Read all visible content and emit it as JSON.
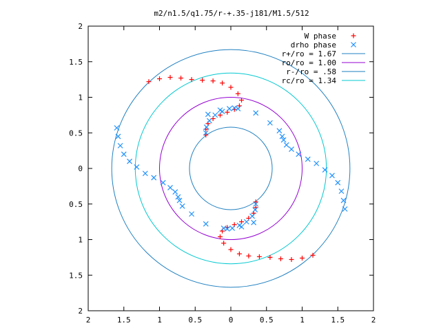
{
  "chart_data": {
    "type": "scatter",
    "title": "m2/n1.5/q1.75/r-+.35-j181/M1.5/512",
    "xlabel": "",
    "ylabel": "",
    "xlim": [
      -2,
      2
    ],
    "ylim": [
      -2,
      2
    ],
    "grid": false,
    "legend_position": "top-right",
    "x_ticks": [
      -2,
      -1.5,
      -1,
      -0.5,
      0,
      0.5,
      1,
      1.5,
      2
    ],
    "y_ticks": [
      -2,
      -1.5,
      -1,
      -0.5,
      0,
      0.5,
      1,
      1.5,
      2
    ],
    "x_tick_labels": [
      "2",
      "1.5",
      "1",
      "0.5",
      "0",
      "0.5",
      "1",
      "1.5",
      "2"
    ],
    "y_tick_labels": [
      "2",
      "1.5",
      "1",
      "0.5",
      "0",
      "0.5",
      "1",
      "1.5",
      "2"
    ],
    "series": [
      {
        "name": "W phase",
        "kind": "points",
        "marker": "plus",
        "color": "#ff0000",
        "x": [
          -1.15,
          -1.0,
          -0.85,
          -0.7,
          -0.55,
          -0.4,
          -0.25,
          -0.12,
          0.0,
          0.1,
          0.15,
          0.12,
          0.05,
          -0.05,
          -0.15,
          -0.25,
          -0.32,
          -0.35,
          -0.35,
          1.15,
          1.0,
          0.85,
          0.7,
          0.55,
          0.4,
          0.25,
          0.12,
          0.0,
          -0.1,
          -0.15,
          -0.12,
          -0.05,
          0.05,
          0.15,
          0.25,
          0.32,
          0.35,
          0.35
        ],
        "y": [
          1.22,
          1.26,
          1.28,
          1.27,
          1.25,
          1.24,
          1.23,
          1.2,
          1.14,
          1.05,
          0.96,
          0.88,
          0.83,
          0.79,
          0.75,
          0.7,
          0.63,
          0.55,
          0.47,
          -1.22,
          -1.26,
          -1.28,
          -1.27,
          -1.25,
          -1.24,
          -1.23,
          -1.2,
          -1.14,
          -1.05,
          -0.96,
          -0.88,
          -0.83,
          -0.79,
          -0.75,
          -0.7,
          -0.63,
          -0.55,
          -0.47
        ]
      },
      {
        "name": "drho phase",
        "kind": "points",
        "marker": "cross",
        "color": "#1e90ff",
        "x": [
          -1.6,
          -1.58,
          -1.55,
          -1.5,
          -1.42,
          -1.32,
          -1.2,
          -1.08,
          -0.95,
          -0.85,
          -0.78,
          -0.74,
          -0.72,
          -0.68,
          -0.55,
          -0.35,
          -0.1,
          0.15,
          0.32,
          -0.35,
          -0.34,
          -0.3,
          -0.22,
          -0.12,
          -0.02,
          0.05,
          1.6,
          1.58,
          1.55,
          1.5,
          1.42,
          1.32,
          1.2,
          1.08,
          0.95,
          0.85,
          0.78,
          0.74,
          0.72,
          0.68,
          0.55,
          0.35,
          0.1,
          -0.15,
          -0.32,
          0.35,
          0.34,
          0.3,
          0.22,
          0.12,
          0.02,
          -0.05
        ],
        "y": [
          0.57,
          0.45,
          0.32,
          0.2,
          0.1,
          0.02,
          -0.07,
          -0.13,
          -0.2,
          -0.27,
          -0.33,
          -0.4,
          -0.45,
          -0.53,
          -0.64,
          -0.78,
          -0.84,
          -0.82,
          -0.76,
          0.5,
          0.58,
          0.67,
          0.75,
          0.8,
          0.84,
          0.85,
          -0.57,
          -0.45,
          -0.32,
          -0.2,
          -0.1,
          -0.02,
          0.07,
          0.13,
          0.2,
          0.27,
          0.33,
          0.4,
          0.45,
          0.53,
          0.64,
          0.78,
          0.84,
          0.82,
          0.76,
          -0.5,
          -0.58,
          -0.67,
          -0.75,
          -0.8,
          -0.84,
          -0.85
        ]
      },
      {
        "name": "r+/ro = 1.67",
        "kind": "circle",
        "radius": 1.67,
        "color": "#1e7fc0"
      },
      {
        "name": "ro/ro = 1.00",
        "kind": "circle",
        "radius": 1.0,
        "color": "#9400d3"
      },
      {
        "name": "r-/ro = .58",
        "kind": "circle",
        "radius": 0.58,
        "color": "#1e7fc0"
      },
      {
        "name": "rc/ro = 1.34",
        "kind": "circle",
        "radius": 1.34,
        "color": "#00c8d0"
      }
    ]
  }
}
